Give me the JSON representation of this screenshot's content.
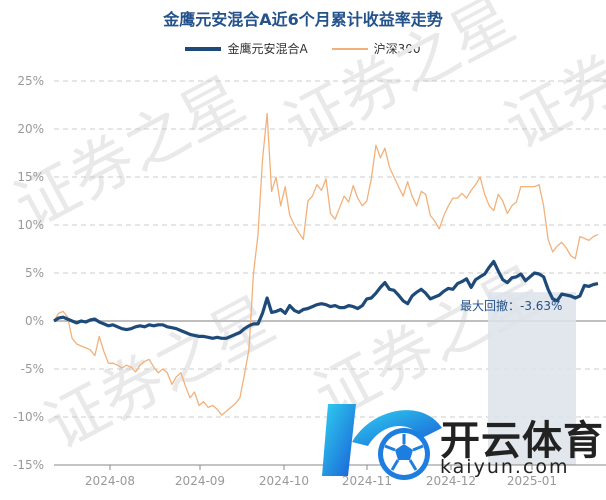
{
  "title": "金鹰元安混合A近6个月累计收益率走势",
  "legend": {
    "fund": "金鹰元安混合A",
    "index": "沪深300"
  },
  "watermark": {
    "text": "证券之星"
  },
  "logo": {
    "text_cn": "开云体育",
    "text_en": "kaiyun.com",
    "icon": "k-soccer-ball-logo"
  },
  "annotation": {
    "label": "最大回撤：-3.63%",
    "value": -3.63
  },
  "colors": {
    "fund": "#1e4a7a",
    "index": "#f2b17a",
    "title": "#24528b",
    "drawdown": "#dde3ea",
    "zero": "#bfbfbf"
  },
  "chart_data": {
    "type": "line",
    "title": "金鹰元安混合A近6个月累计收益率走势",
    "x_tick_labels": [
      "2024-08",
      "2024-09",
      "2024-10",
      "2024-11",
      "2024-12",
      "2025-01"
    ],
    "y_tick_labels": [
      "25%",
      "20%",
      "15%",
      "10%",
      "5%",
      "0%",
      "-5%",
      "-10%",
      "-15%"
    ],
    "y_ticks": [
      25,
      20,
      15,
      10,
      5,
      0,
      -5,
      -10,
      -15
    ],
    "ylim": [
      -15,
      25
    ],
    "grid": true,
    "legend_position": "top",
    "max_drawdown_percent": -3.63,
    "series": [
      {
        "name": "金鹰元安混合A",
        "values": [
          0.0,
          0.3,
          0.4,
          0.2,
          0.0,
          -0.2,
          0.0,
          -0.1,
          0.1,
          0.2,
          -0.1,
          -0.3,
          -0.5,
          -0.4,
          -0.6,
          -0.8,
          -0.9,
          -0.8,
          -0.6,
          -0.5,
          -0.6,
          -0.4,
          -0.5,
          -0.4,
          -0.4,
          -0.6,
          -0.7,
          -0.8,
          -1.0,
          -1.2,
          -1.4,
          -1.5,
          -1.6,
          -1.6,
          -1.7,
          -1.8,
          -1.7,
          -1.8,
          -1.8,
          -1.6,
          -1.4,
          -1.2,
          -0.8,
          -0.5,
          -0.3,
          -0.3,
          0.8,
          2.4,
          0.9,
          1.0,
          1.2,
          0.8,
          1.6,
          1.1,
          0.9,
          1.2,
          1.3,
          1.5,
          1.7,
          1.8,
          1.7,
          1.5,
          1.6,
          1.4,
          1.4,
          1.6,
          1.5,
          1.3,
          1.6,
          2.3,
          2.4,
          2.9,
          3.5,
          4.0,
          3.3,
          3.2,
          2.7,
          2.1,
          1.8,
          2.6,
          3.0,
          3.3,
          2.9,
          2.3,
          2.5,
          2.7,
          3.1,
          3.4,
          3.3,
          3.9,
          4.1,
          4.4,
          3.5,
          4.3,
          4.6,
          4.9,
          5.6,
          6.2,
          5.2,
          4.3,
          4.0,
          4.5,
          4.6,
          4.9,
          4.2,
          4.6,
          5.0,
          4.9,
          4.6,
          3.3,
          2.3,
          2.1,
          2.8,
          2.7,
          2.6,
          2.4,
          2.6,
          3.7,
          3.6,
          3.8,
          3.9
        ],
        "dates_span": "2024-07 to 2025-01"
      },
      {
        "name": "沪深300",
        "values": [
          0.0,
          0.8,
          1.0,
          0.4,
          -1.8,
          -2.4,
          -2.6,
          -2.8,
          -3.0,
          -3.6,
          -1.6,
          -3.2,
          -4.4,
          -4.4,
          -4.6,
          -4.9,
          -4.6,
          -4.8,
          -5.3,
          -4.6,
          -4.2,
          -4.0,
          -4.8,
          -5.4,
          -5.0,
          -5.4,
          -6.6,
          -5.8,
          -5.4,
          -6.8,
          -8.0,
          -7.4,
          -8.8,
          -8.4,
          -9.0,
          -8.8,
          -9.2,
          -9.8,
          -9.4,
          -9.0,
          -8.6,
          -8.0,
          -5.6,
          -3.0,
          5.0,
          9.0,
          16.8,
          21.6,
          13.5,
          15.0,
          12.0,
          14.0,
          11.0,
          10.0,
          9.2,
          8.5,
          12.5,
          13.0,
          14.2,
          13.6,
          14.8,
          11.2,
          10.6,
          11.8,
          13.0,
          12.4,
          14.1,
          12.8,
          12.0,
          12.5,
          14.8,
          18.3,
          17.0,
          18.0,
          16.0,
          15.0,
          14.0,
          13.0,
          14.5,
          13.0,
          12.0,
          13.5,
          13.2,
          11.0,
          10.4,
          9.6,
          11.0,
          12.0,
          12.8,
          12.8,
          13.3,
          12.8,
          13.6,
          14.2,
          15.0,
          13.2,
          12.0,
          11.5,
          13.2,
          12.5,
          11.2,
          12.0,
          12.4,
          14.0,
          14.0,
          14.0,
          14.0,
          14.2,
          12.0,
          8.5,
          7.2,
          7.8,
          8.2,
          7.6,
          6.8,
          6.5,
          8.8,
          8.6,
          8.4,
          8.8,
          9.0
        ],
        "dates_span": "2024-07 to 2025-01"
      }
    ]
  }
}
